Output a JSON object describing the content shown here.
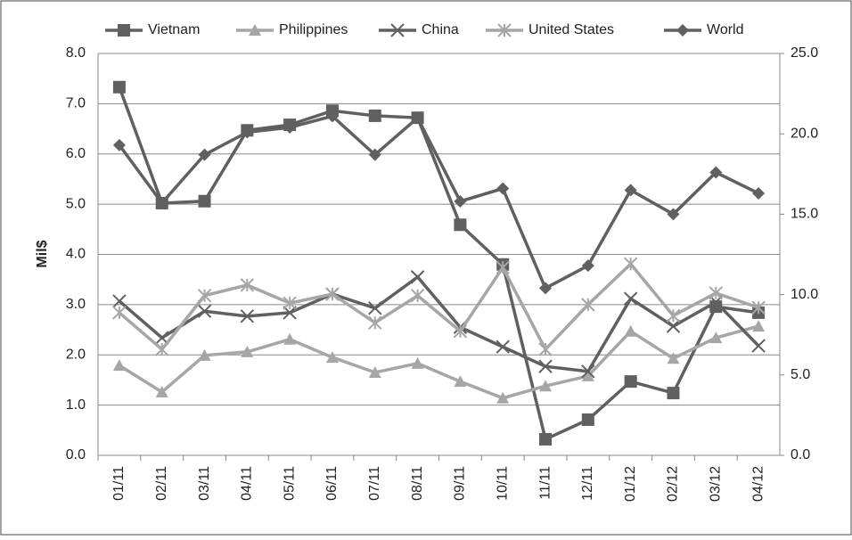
{
  "chart_data": {
    "type": "line",
    "y_label": "Mil$",
    "categories": [
      "01/11",
      "02/11",
      "03/11",
      "04/11",
      "05/11",
      "06/11",
      "07/11",
      "08/11",
      "09/11",
      "10/11",
      "11/11",
      "12/11",
      "01/12",
      "02/12",
      "03/12",
      "04/12"
    ],
    "series": [
      {
        "name": "Vietnam",
        "color": "#606060",
        "marker": "square",
        "values": [
          7.33,
          5.02,
          5.06,
          6.47,
          6.58,
          6.86,
          6.76,
          6.72,
          4.59,
          3.8,
          0.32,
          0.71,
          1.47,
          1.24,
          2.96,
          2.84
        ]
      },
      {
        "name": "Philippines",
        "color": "#a6a6a6",
        "marker": "triangle",
        "values": [
          1.79,
          1.26,
          1.99,
          2.06,
          2.31,
          1.95,
          1.65,
          1.83,
          1.47,
          1.14,
          1.38,
          1.58,
          2.47,
          1.93,
          2.34,
          2.57
        ]
      },
      {
        "name": "China",
        "color": "#606060",
        "marker": "x",
        "values": [
          3.07,
          2.34,
          2.87,
          2.77,
          2.84,
          3.21,
          2.93,
          3.55,
          2.55,
          2.16,
          1.77,
          1.67,
          3.12,
          2.57,
          3.05,
          2.18
        ]
      },
      {
        "name": "United States",
        "color": "#a6a6a6",
        "marker": "star",
        "values": [
          2.84,
          2.11,
          3.18,
          3.39,
          3.03,
          3.21,
          2.64,
          3.18,
          2.47,
          3.74,
          2.11,
          3.0,
          3.81,
          2.78,
          3.23,
          2.94
        ]
      },
      {
        "name": "World",
        "color": "#606060",
        "marker": "diamond",
        "axis": "y2",
        "values": [
          19.3,
          15.7,
          18.7,
          20.1,
          20.4,
          21.1,
          18.7,
          21.0,
          15.8,
          16.6,
          10.4,
          11.8,
          16.5,
          15.0,
          17.6,
          16.3
        ]
      }
    ],
    "ylim": [
      0,
      8
    ],
    "yticks": [
      {
        "value": 0,
        "label": "0.0"
      },
      {
        "value": 1,
        "label": "1.0"
      },
      {
        "value": 2,
        "label": "2.0"
      },
      {
        "value": 3,
        "label": "3.0"
      },
      {
        "value": 4,
        "label": "4.0"
      },
      {
        "value": 5,
        "label": "5.0"
      },
      {
        "value": 6,
        "label": "6.0"
      },
      {
        "value": 7,
        "label": "7.0"
      },
      {
        "value": 8,
        "label": "8.0"
      }
    ],
    "y2lim": [
      0,
      25
    ],
    "y2ticks": [
      {
        "value": 0,
        "label": "0.0"
      },
      {
        "value": 5,
        "label": "5.0"
      },
      {
        "value": 10,
        "label": "10.0"
      },
      {
        "value": 15,
        "label": "15.0"
      },
      {
        "value": 20,
        "label": "20.0"
      },
      {
        "value": 25,
        "label": "25.0"
      }
    ],
    "grid": true,
    "legend": "top"
  }
}
